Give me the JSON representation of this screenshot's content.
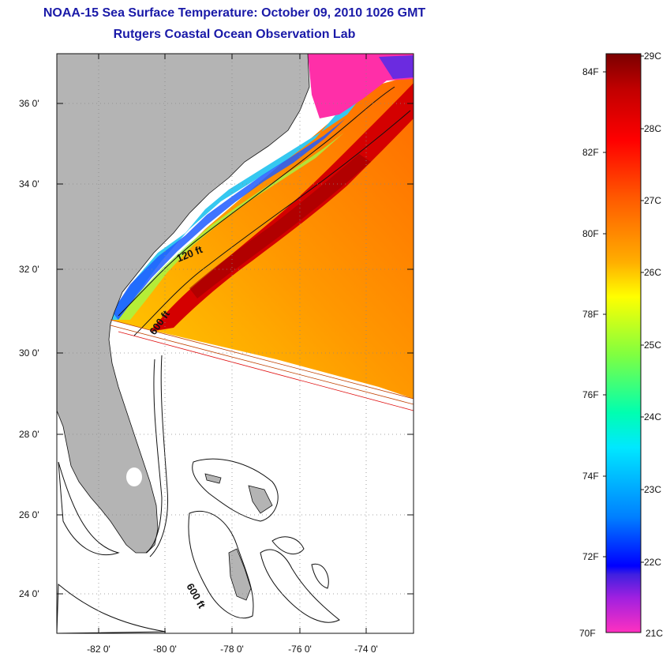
{
  "header": {
    "title": "NOAA-15 Sea Surface Temperature:  October 09, 2010 1026 GMT",
    "subtitle": "Rutgers Coastal Ocean Observation Lab"
  },
  "map": {
    "lon_labels": [
      "-82 0'",
      "-80 0'",
      "-78 0'",
      "-76 0'",
      "-74 0'"
    ],
    "lat_labels": [
      "36 0'",
      "34 0'",
      "32 0'",
      "30 0'",
      "28 0'",
      "26 0'",
      "24 0'"
    ],
    "contour_labels": [
      "120 ft",
      "600 ft",
      "600 ft"
    ],
    "colors": {
      "land": "#b4b4b4",
      "no_data": "#ffffff",
      "shelf_cool": "#35c8f0",
      "gulf_stream": "#d40000"
    }
  },
  "colorbar": {
    "fahrenheit_labels": [
      "84F",
      "82F",
      "80F",
      "78F",
      "76F",
      "74F",
      "72F",
      "70F"
    ],
    "celsius_labels": [
      "29C",
      "28C",
      "27C",
      "26C",
      "25C",
      "24C",
      "23C",
      "22C",
      "21C"
    ],
    "range_c": [
      21,
      29
    ],
    "range_f": [
      70,
      84.2
    ]
  }
}
